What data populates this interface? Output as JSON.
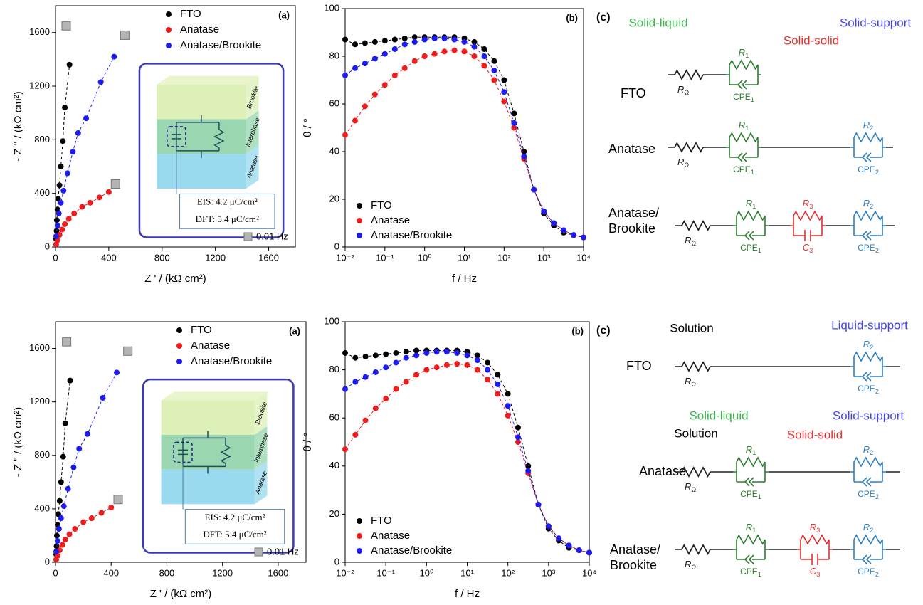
{
  "chart_data": [
    {
      "type": "scatter",
      "panel_label": "(a)",
      "xlabel": "Z ' / (kΩ cm²)",
      "ylabel": "- Z '' / (kΩ cm²)",
      "xlim": [
        0,
        1800
      ],
      "ylim": [
        0,
        1800
      ],
      "xticks": [
        0,
        400,
        800,
        1200,
        1600
      ],
      "yticks": [
        0,
        400,
        800,
        1200,
        1600
      ],
      "legend": "upper right",
      "series": [
        {
          "name": "FTO",
          "color": "#000000",
          "marker": "circle",
          "fit": true,
          "x": [
            5,
            8,
            10,
            15,
            20,
            30,
            40,
            55,
            70,
            105
          ],
          "values": [
            60,
            120,
            200,
            280,
            360,
            460,
            600,
            790,
            1040,
            1360
          ]
        },
        {
          "name": "Anatase",
          "color": "#ee1c1c",
          "marker": "circle",
          "fit": true,
          "x": [
            5,
            15,
            30,
            50,
            70,
            100,
            140,
            200,
            260,
            330,
            400
          ],
          "values": [
            20,
            50,
            90,
            130,
            170,
            210,
            250,
            300,
            330,
            370,
            410
          ]
        },
        {
          "name": "Anatase/Brookite",
          "color": "#1c1cee",
          "marker": "circle",
          "fit": true,
          "x": [
            5,
            15,
            25,
            40,
            60,
            90,
            130,
            170,
            230,
            340,
            440
          ],
          "values": [
            80,
            160,
            250,
            330,
            420,
            550,
            710,
            850,
            960,
            1230,
            1420
          ]
        },
        {
          "name": "0.01 Hz",
          "color": "#b4b4b4",
          "marker": "square",
          "fit": false,
          "x": [
            80,
            520,
            450
          ],
          "values": [
            1650,
            1580,
            470
          ]
        }
      ],
      "inset": {
        "layers": [
          "Brookite",
          "Interphase",
          "Anatase"
        ],
        "notes": [
          "EIS: 4.2 μC/cm²",
          "DFT: 5.4 μC/cm²"
        ]
      }
    },
    {
      "type": "line",
      "panel_label": "(b)",
      "xlabel": "f / Hz",
      "ylabel": "θ / °",
      "xscale": "log",
      "xlim": [
        0.01,
        10000
      ],
      "ylim": [
        0,
        100
      ],
      "xticks": [
        {
          "value": 0.01,
          "label": "10⁻²"
        },
        {
          "value": 0.1,
          "label": "10⁻¹"
        },
        {
          "value": 1,
          "label": "10⁰"
        },
        {
          "value": 10,
          "label": "10¹"
        },
        {
          "value": 100,
          "label": "10²"
        },
        {
          "value": 1000,
          "label": "10³"
        },
        {
          "value": 10000,
          "label": "10⁴"
        }
      ],
      "yticks": [
        0,
        20,
        40,
        60,
        80,
        100
      ],
      "legend": "lower left",
      "x": [
        0.01,
        0.0178,
        0.0316,
        0.0562,
        0.1,
        0.178,
        0.316,
        0.562,
        1,
        1.78,
        3.16,
        5.62,
        10,
        17.8,
        31.6,
        56.2,
        100,
        178,
        316,
        562,
        1000,
        1780,
        3160,
        5620,
        10000
      ],
      "series": [
        {
          "name": "FTO",
          "color": "#000000",
          "marker": "circle",
          "fit": true,
          "values": [
            87,
            85,
            85.5,
            86,
            86.5,
            87,
            87.5,
            88,
            88,
            88,
            88,
            88,
            87.5,
            86,
            83,
            78,
            70,
            56,
            40,
            24,
            14,
            9,
            6,
            5,
            4
          ]
        },
        {
          "name": "Anatase",
          "color": "#ee1c1c",
          "marker": "circle",
          "fit": true,
          "values": [
            47,
            53,
            59,
            64,
            68,
            72,
            75,
            78,
            80,
            81,
            82,
            82.5,
            82,
            80,
            76,
            70,
            61,
            50,
            37,
            24,
            15,
            10,
            7,
            5,
            4
          ]
        },
        {
          "name": "Anatase/Brookite",
          "color": "#1c1cee",
          "marker": "circle",
          "fit": true,
          "values": [
            72,
            75,
            77,
            79,
            81,
            83,
            85,
            86,
            87,
            87.5,
            87.5,
            87,
            86,
            84,
            80,
            74,
            65,
            52,
            38,
            24,
            15,
            10,
            7,
            5,
            4
          ]
        }
      ]
    },
    {
      "type": "scatter",
      "panel_label": "(a)",
      "xlabel": "Z ' / (kΩ cm²)",
      "ylabel": "- Z '' / (kΩ cm²)",
      "xlim": [
        0,
        1800
      ],
      "ylim": [
        0,
        1800
      ],
      "xticks": [
        0,
        400,
        800,
        1200,
        1600
      ],
      "yticks": [
        0,
        400,
        800,
        1200,
        1600
      ],
      "legend": "upper right",
      "series": [
        {
          "name": "FTO",
          "color": "#000000",
          "marker": "circle",
          "fit": true,
          "x": [
            5,
            8,
            10,
            15,
            20,
            30,
            40,
            55,
            70,
            105
          ],
          "values": [
            60,
            120,
            200,
            280,
            360,
            460,
            600,
            790,
            1040,
            1360
          ]
        },
        {
          "name": "Anatase",
          "color": "#ee1c1c",
          "marker": "circle",
          "fit": true,
          "x": [
            5,
            15,
            30,
            50,
            70,
            100,
            140,
            200,
            260,
            330,
            400
          ],
          "values": [
            20,
            50,
            90,
            130,
            170,
            210,
            250,
            300,
            330,
            370,
            410
          ]
        },
        {
          "name": "Anatase/Brookite",
          "color": "#1c1cee",
          "marker": "circle",
          "fit": true,
          "x": [
            5,
            15,
            25,
            40,
            60,
            90,
            130,
            170,
            230,
            340,
            440
          ],
          "values": [
            80,
            160,
            250,
            330,
            420,
            550,
            710,
            850,
            960,
            1230,
            1420
          ]
        },
        {
          "name": "0.01 Hz",
          "color": "#b4b4b4",
          "marker": "square",
          "fit": false,
          "x": [
            80,
            520,
            450
          ],
          "values": [
            1650,
            1580,
            470
          ]
        }
      ],
      "inset": {
        "layers": [
          "Brookite",
          "Interphase",
          "Anatase"
        ],
        "notes": [
          "EIS: 4.2 μC/cm²",
          "DFT: 5.4 μC/cm²"
        ]
      }
    },
    {
      "type": "line",
      "panel_label": "(b)",
      "xlabel": "f / Hz",
      "ylabel": "θ / °",
      "xscale": "log",
      "xlim": [
        0.01,
        10000
      ],
      "ylim": [
        0,
        100
      ],
      "xticks": [
        {
          "value": 0.01,
          "label": "10⁻²"
        },
        {
          "value": 0.1,
          "label": "10⁻¹"
        },
        {
          "value": 1,
          "label": "10⁰"
        },
        {
          "value": 10,
          "label": "10¹"
        },
        {
          "value": 100,
          "label": "10²"
        },
        {
          "value": 1000,
          "label": "10³"
        },
        {
          "value": 10000,
          "label": "10⁴"
        }
      ],
      "yticks": [
        0,
        20,
        40,
        60,
        80,
        100
      ],
      "legend": "lower left",
      "x": [
        0.01,
        0.0178,
        0.0316,
        0.0562,
        0.1,
        0.178,
        0.316,
        0.562,
        1,
        1.78,
        3.16,
        5.62,
        10,
        17.8,
        31.6,
        56.2,
        100,
        178,
        316,
        562,
        1000,
        1780,
        3160,
        5620,
        10000
      ],
      "series": [
        {
          "name": "FTO",
          "color": "#000000",
          "marker": "circle",
          "fit": true,
          "values": [
            87,
            85,
            85.5,
            86,
            86.5,
            87,
            87.5,
            88,
            88,
            88,
            88,
            88,
            87.5,
            86,
            83,
            78,
            70,
            56,
            40,
            24,
            14,
            9,
            6,
            5,
            4
          ]
        },
        {
          "name": "Anatase",
          "color": "#ee1c1c",
          "marker": "circle",
          "fit": true,
          "values": [
            47,
            53,
            59,
            64,
            68,
            72,
            75,
            78,
            80,
            81,
            82,
            82.5,
            82,
            80,
            76,
            70,
            61,
            50,
            37,
            24,
            15,
            10,
            7,
            5,
            4
          ]
        },
        {
          "name": "Anatase/Brookite",
          "color": "#1c1cee",
          "marker": "circle",
          "fit": true,
          "values": [
            72,
            75,
            77,
            79,
            81,
            83,
            85,
            86,
            87,
            87.5,
            87.5,
            87,
            86,
            84,
            80,
            74,
            65,
            52,
            38,
            24,
            15,
            10,
            7,
            5,
            4
          ]
        }
      ]
    }
  ],
  "circuits": [
    {
      "panel_label": "(c)",
      "headers": [
        {
          "text": "Solid-liquid",
          "color": "#3cb44b"
        },
        {
          "text": "Solid-support",
          "color": "#4646e0"
        },
        {
          "text": "Solid-solid",
          "color": "#e53030"
        }
      ],
      "rows": [
        {
          "lines": [
            "FTO"
          ],
          "elements": [
            {
              "kind": "resistor",
              "color": "#222222",
              "label": "R",
              "sub": "Ω"
            },
            {
              "kind": "r-cpe",
              "color": "#2e7d32",
              "r_label": "R",
              "r_sub": "1",
              "c_label": "CPE",
              "c_sub": "1"
            }
          ]
        },
        {
          "lines": [
            "Anatase"
          ],
          "elements": [
            {
              "kind": "resistor",
              "color": "#222222",
              "label": "R",
              "sub": "Ω"
            },
            {
              "kind": "r-cpe",
              "color": "#2e7d32",
              "r_label": "R",
              "r_sub": "1",
              "c_label": "CPE",
              "c_sub": "1"
            },
            {
              "kind": "r-cpe",
              "color": "#2f7fc1",
              "r_label": "R",
              "r_sub": "2",
              "c_label": "CPE",
              "c_sub": "2"
            }
          ]
        },
        {
          "lines": [
            "Anatase/",
            "Brookite"
          ],
          "elements": [
            {
              "kind": "resistor",
              "color": "#222222",
              "label": "R",
              "sub": "Ω"
            },
            {
              "kind": "r-cpe",
              "color": "#2e7d32",
              "r_label": "R",
              "r_sub": "1",
              "c_label": "CPE",
              "c_sub": "1"
            },
            {
              "kind": "r-c",
              "color": "#e53030",
              "r_label": "R",
              "r_sub": "3",
              "c_label": "C",
              "c_sub": "3"
            },
            {
              "kind": "r-cpe",
              "color": "#2f7fc1",
              "r_label": "R",
              "r_sub": "2",
              "c_label": "CPE",
              "c_sub": "2"
            }
          ]
        }
      ]
    },
    {
      "panel_label": "(c)",
      "headers": [
        {
          "text": "Solution",
          "color": "#000000"
        },
        {
          "text": "Liquid-support",
          "color": "#4646e0"
        },
        {
          "text": "Solid-liquid",
          "color": "#3cb44b"
        },
        {
          "text": "Solid-support",
          "color": "#4646e0"
        },
        {
          "text": "Solution",
          "color": "#000000"
        },
        {
          "text": "Solid-solid",
          "color": "#e53030"
        }
      ],
      "rows": [
        {
          "lines": [
            "FTO"
          ],
          "elements": [
            {
              "kind": "resistor",
              "color": "#222222",
              "label": "R",
              "sub": "Ω"
            },
            {
              "kind": "r-cpe",
              "color": "#2f7fc1",
              "r_label": "R",
              "r_sub": "2",
              "c_label": "CPE",
              "c_sub": "2"
            }
          ]
        },
        {
          "lines": [
            "Anatase"
          ],
          "elements": [
            {
              "kind": "resistor",
              "color": "#222222",
              "label": "R",
              "sub": "Ω"
            },
            {
              "kind": "r-cpe",
              "color": "#2e7d32",
              "r_label": "R",
              "r_sub": "1",
              "c_label": "CPE",
              "c_sub": "1"
            },
            {
              "kind": "r-cpe",
              "color": "#2f7fc1",
              "r_label": "R",
              "r_sub": "2",
              "c_label": "CPE",
              "c_sub": "2"
            }
          ]
        },
        {
          "lines": [
            "Anatase/",
            "Brookite"
          ],
          "elements": [
            {
              "kind": "resistor",
              "color": "#222222",
              "label": "R",
              "sub": "Ω"
            },
            {
              "kind": "r-cpe",
              "color": "#2e7d32",
              "r_label": "R",
              "r_sub": "1",
              "c_label": "CPE",
              "c_sub": "1"
            },
            {
              "kind": "r-c",
              "color": "#e53030",
              "r_label": "R",
              "r_sub": "3",
              "c_label": "C",
              "c_sub": "3"
            },
            {
              "kind": "r-cpe",
              "color": "#2f7fc1",
              "r_label": "R",
              "r_sub": "2",
              "c_label": "CPE",
              "c_sub": "2"
            }
          ]
        }
      ]
    }
  ]
}
